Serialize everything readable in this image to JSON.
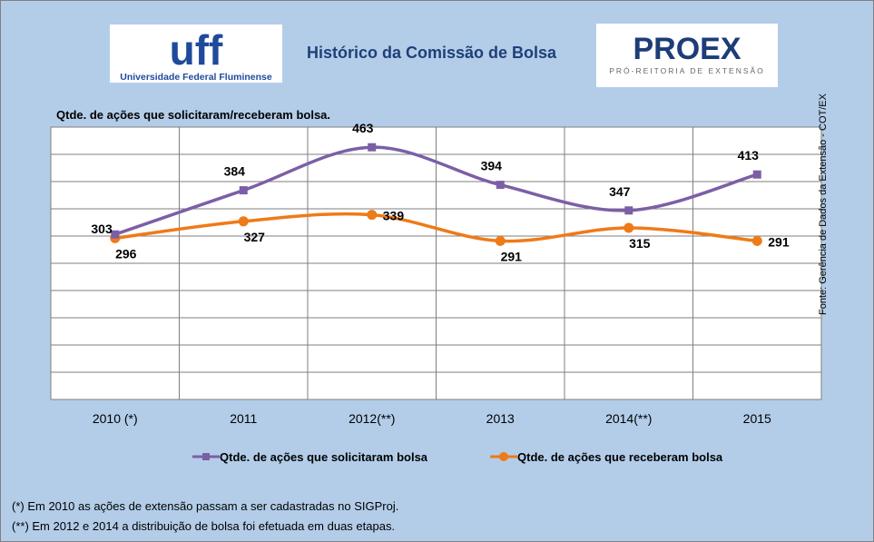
{
  "header": {
    "title": "Histórico da Comissão de Bolsa",
    "uff_logo_text": "uff",
    "uff_logo_subtext": "Universidade Federal Fluminense",
    "proex_logo_text": "PROEX",
    "proex_logo_subtext": "PRÓ-REITORIA DE EXTENSÃO"
  },
  "source_note": "Fonte: Gerência de Dados da Extensão - COT/EX",
  "footnotes": [
    "(*) Em 2010 as ações de extensão passam a ser cadastradas no SIGProj.",
    "(**) Em 2012 e 2014 a distribuição de bolsa foi efetuada em duas etapas."
  ],
  "colors": {
    "background": "#b3cde9",
    "plot_area": "#ffffff",
    "grid": "#7f7f7f",
    "series_solicitaram": "#7b5fa6",
    "series_receberam": "#ef7a18",
    "title": "#1f3f78",
    "uff_blue": "#1f4a9c",
    "proex_blue": "#1d3c78"
  },
  "chart_data": {
    "type": "line",
    "title": "Qtde. de ações que solicitaram/receberam bolsa.",
    "xlabel": "",
    "ylabel": "",
    "categories": [
      "2010 (*)",
      "2011",
      "2012(**)",
      "2013",
      "2014(**)",
      "2015"
    ],
    "ylim": [
      0,
      500
    ],
    "grid": true,
    "smooth": true,
    "legend_position": "bottom",
    "series": [
      {
        "name": "Qtde. de ações que solicitaram bolsa",
        "values": [
          303,
          384,
          463,
          394,
          347,
          413
        ],
        "marker": "square",
        "color": "#7b5fa6"
      },
      {
        "name": "Qtde. de ações que receberam bolsa",
        "values": [
          296,
          327,
          339,
          291,
          315,
          291
        ],
        "marker": "circle",
        "color": "#ef7a18"
      }
    ]
  }
}
